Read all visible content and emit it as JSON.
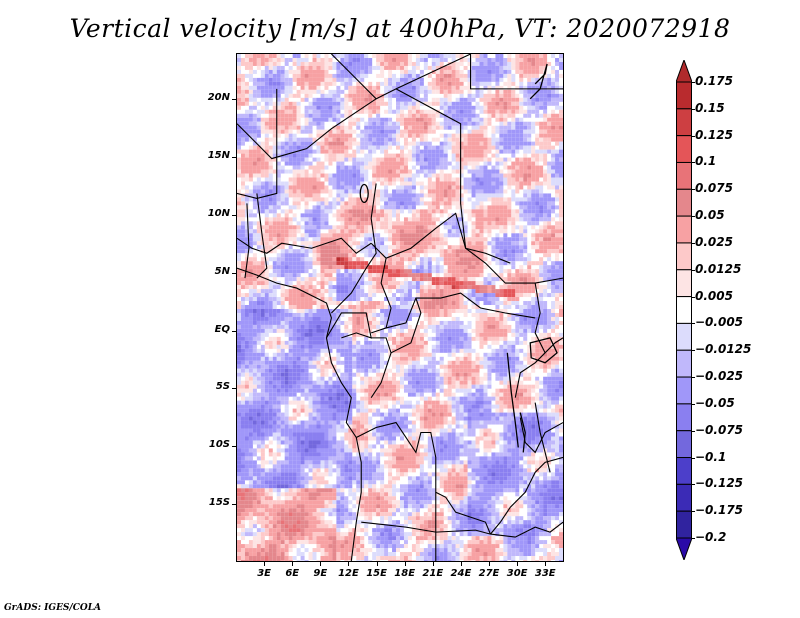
{
  "title": "Vertical velocity [m/s] at 400hPa, VT: 2020072918",
  "footer": "GrADS: IGES/COLA",
  "chart_data": {
    "type": "heatmap",
    "title": "Vertical velocity [m/s] at 400hPa, VT: 2020072918",
    "variable": "Vertical velocity",
    "units": "m/s",
    "level": "400hPa",
    "valid_time": "2020072918",
    "xlabel": "",
    "ylabel": "",
    "lon_range": [
      0,
      35
    ],
    "lat_range": [
      -20,
      24
    ],
    "x_ticks": [
      "3E",
      "6E",
      "9E",
      "12E",
      "15E",
      "18E",
      "21E",
      "24E",
      "27E",
      "30E",
      "33E"
    ],
    "x_tick_values": [
      3,
      6,
      9,
      12,
      15,
      18,
      21,
      24,
      27,
      30,
      33
    ],
    "y_ticks": [
      "20N",
      "15N",
      "10N",
      "5N",
      "EQ",
      "5S",
      "10S",
      "15S"
    ],
    "y_tick_values": [
      20,
      15,
      10,
      5,
      0,
      -5,
      -10,
      -15
    ],
    "colorbar": {
      "labels": [
        "0.175",
        "0.15",
        "0.125",
        "0.1",
        "0.075",
        "0.05",
        "0.025",
        "0.0125",
        "0.005",
        "-0.005",
        "-0.0125",
        "-0.025",
        "-0.05",
        "-0.075",
        "-0.1",
        "-0.125",
        "-0.175",
        "-0.2"
      ],
      "levels": [
        0.175,
        0.15,
        0.125,
        0.1,
        0.075,
        0.05,
        0.025,
        0.0125,
        0.005,
        -0.005,
        -0.0125,
        -0.025,
        -0.05,
        -0.075,
        -0.1,
        -0.125,
        -0.175,
        -0.2
      ],
      "colors": [
        "#b02a2c",
        "#b92b2e",
        "#cd3f42",
        "#e45558",
        "#e87378",
        "#e4878c",
        "#f7a1a3",
        "#fdc9c9",
        "#fde4e4",
        "#ffffff",
        "#dcdcfc",
        "#c0b8fb",
        "#a097f9",
        "#8a7ff0",
        "#7368dd",
        "#4c3fca",
        "#3b2bb6",
        "#30239f",
        "#2a0aa8"
      ],
      "extend": "both"
    },
    "features": [
      {
        "name": "strong ascent band",
        "location": "approx 5-7N, 12-25E",
        "sign": "positive"
      },
      {
        "name": "descent region",
        "location": "southwest Atlantic, 0-15S, 0-10E",
        "sign": "negative"
      },
      {
        "name": "ascent region",
        "location": "southwest corner, 15-20S, 0-8E",
        "sign": "positive"
      }
    ],
    "overlay": "country boundaries and coastlines"
  }
}
